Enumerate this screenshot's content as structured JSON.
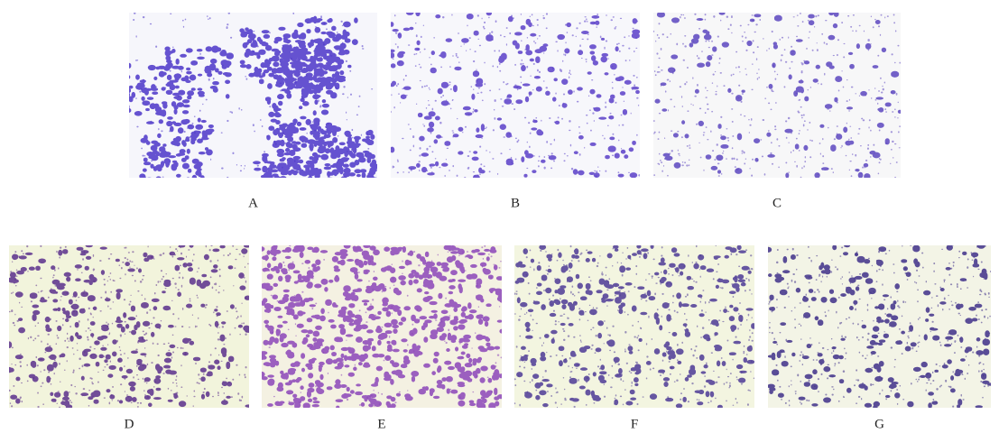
{
  "panels": [
    {
      "label": "A"
    },
    {
      "label": "B"
    },
    {
      "label": "C"
    },
    {
      "label": "D"
    },
    {
      "label": "E"
    },
    {
      "label": "F"
    },
    {
      "label": "G"
    }
  ]
}
